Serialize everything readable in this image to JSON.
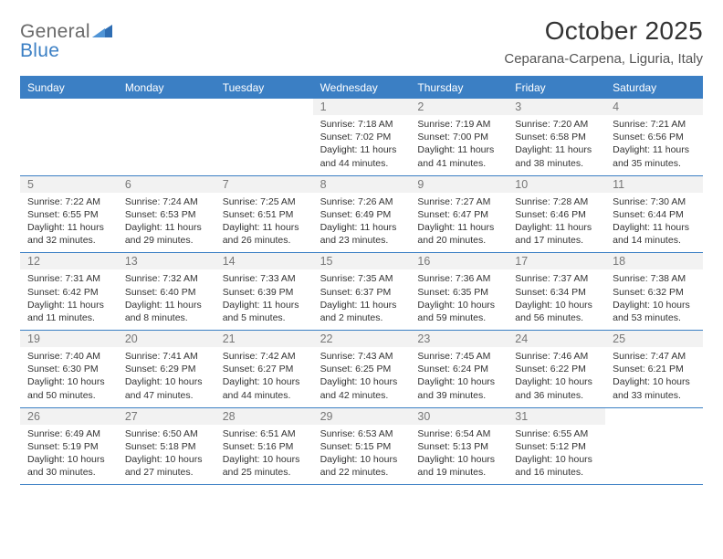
{
  "logo": {
    "text1": "General",
    "text2": "Blue"
  },
  "title": "October 2025",
  "location": "Ceparana-Carpena, Liguria, Italy",
  "colors": {
    "header_bg": "#3b7fc4",
    "header_text": "#ffffff",
    "daynum_bg": "#f2f2f2",
    "daynum_text": "#777777",
    "body_text": "#333333",
    "logo_gray": "#6a6a6a",
    "logo_blue": "#3b7fc4",
    "rule": "#3b7fc4"
  },
  "fonts": {
    "body_family": "Arial",
    "title_size_pt": 21,
    "header_size_pt": 9,
    "detail_size_pt": 8
  },
  "day_names": [
    "Sunday",
    "Monday",
    "Tuesday",
    "Wednesday",
    "Thursday",
    "Friday",
    "Saturday"
  ],
  "weeks": [
    [
      {
        "empty": true
      },
      {
        "empty": true
      },
      {
        "empty": true
      },
      {
        "num": "1",
        "sunrise": "7:18 AM",
        "sunset": "7:02 PM",
        "daylight": "11 hours and 44 minutes."
      },
      {
        "num": "2",
        "sunrise": "7:19 AM",
        "sunset": "7:00 PM",
        "daylight": "11 hours and 41 minutes."
      },
      {
        "num": "3",
        "sunrise": "7:20 AM",
        "sunset": "6:58 PM",
        "daylight": "11 hours and 38 minutes."
      },
      {
        "num": "4",
        "sunrise": "7:21 AM",
        "sunset": "6:56 PM",
        "daylight": "11 hours and 35 minutes."
      }
    ],
    [
      {
        "num": "5",
        "sunrise": "7:22 AM",
        "sunset": "6:55 PM",
        "daylight": "11 hours and 32 minutes."
      },
      {
        "num": "6",
        "sunrise": "7:24 AM",
        "sunset": "6:53 PM",
        "daylight": "11 hours and 29 minutes."
      },
      {
        "num": "7",
        "sunrise": "7:25 AM",
        "sunset": "6:51 PM",
        "daylight": "11 hours and 26 minutes."
      },
      {
        "num": "8",
        "sunrise": "7:26 AM",
        "sunset": "6:49 PM",
        "daylight": "11 hours and 23 minutes."
      },
      {
        "num": "9",
        "sunrise": "7:27 AM",
        "sunset": "6:47 PM",
        "daylight": "11 hours and 20 minutes."
      },
      {
        "num": "10",
        "sunrise": "7:28 AM",
        "sunset": "6:46 PM",
        "daylight": "11 hours and 17 minutes."
      },
      {
        "num": "11",
        "sunrise": "7:30 AM",
        "sunset": "6:44 PM",
        "daylight": "11 hours and 14 minutes."
      }
    ],
    [
      {
        "num": "12",
        "sunrise": "7:31 AM",
        "sunset": "6:42 PM",
        "daylight": "11 hours and 11 minutes."
      },
      {
        "num": "13",
        "sunrise": "7:32 AM",
        "sunset": "6:40 PM",
        "daylight": "11 hours and 8 minutes."
      },
      {
        "num": "14",
        "sunrise": "7:33 AM",
        "sunset": "6:39 PM",
        "daylight": "11 hours and 5 minutes."
      },
      {
        "num": "15",
        "sunrise": "7:35 AM",
        "sunset": "6:37 PM",
        "daylight": "11 hours and 2 minutes."
      },
      {
        "num": "16",
        "sunrise": "7:36 AM",
        "sunset": "6:35 PM",
        "daylight": "10 hours and 59 minutes."
      },
      {
        "num": "17",
        "sunrise": "7:37 AM",
        "sunset": "6:34 PM",
        "daylight": "10 hours and 56 minutes."
      },
      {
        "num": "18",
        "sunrise": "7:38 AM",
        "sunset": "6:32 PM",
        "daylight": "10 hours and 53 minutes."
      }
    ],
    [
      {
        "num": "19",
        "sunrise": "7:40 AM",
        "sunset": "6:30 PM",
        "daylight": "10 hours and 50 minutes."
      },
      {
        "num": "20",
        "sunrise": "7:41 AM",
        "sunset": "6:29 PM",
        "daylight": "10 hours and 47 minutes."
      },
      {
        "num": "21",
        "sunrise": "7:42 AM",
        "sunset": "6:27 PM",
        "daylight": "10 hours and 44 minutes."
      },
      {
        "num": "22",
        "sunrise": "7:43 AM",
        "sunset": "6:25 PM",
        "daylight": "10 hours and 42 minutes."
      },
      {
        "num": "23",
        "sunrise": "7:45 AM",
        "sunset": "6:24 PM",
        "daylight": "10 hours and 39 minutes."
      },
      {
        "num": "24",
        "sunrise": "7:46 AM",
        "sunset": "6:22 PM",
        "daylight": "10 hours and 36 minutes."
      },
      {
        "num": "25",
        "sunrise": "7:47 AM",
        "sunset": "6:21 PM",
        "daylight": "10 hours and 33 minutes."
      }
    ],
    [
      {
        "num": "26",
        "sunrise": "6:49 AM",
        "sunset": "5:19 PM",
        "daylight": "10 hours and 30 minutes."
      },
      {
        "num": "27",
        "sunrise": "6:50 AM",
        "sunset": "5:18 PM",
        "daylight": "10 hours and 27 minutes."
      },
      {
        "num": "28",
        "sunrise": "6:51 AM",
        "sunset": "5:16 PM",
        "daylight": "10 hours and 25 minutes."
      },
      {
        "num": "29",
        "sunrise": "6:53 AM",
        "sunset": "5:15 PM",
        "daylight": "10 hours and 22 minutes."
      },
      {
        "num": "30",
        "sunrise": "6:54 AM",
        "sunset": "5:13 PM",
        "daylight": "10 hours and 19 minutes."
      },
      {
        "num": "31",
        "sunrise": "6:55 AM",
        "sunset": "5:12 PM",
        "daylight": "10 hours and 16 minutes."
      },
      {
        "empty": true
      }
    ]
  ],
  "labels": {
    "sunrise_prefix": "Sunrise: ",
    "sunset_prefix": "Sunset: ",
    "daylight_prefix": "Daylight: "
  }
}
